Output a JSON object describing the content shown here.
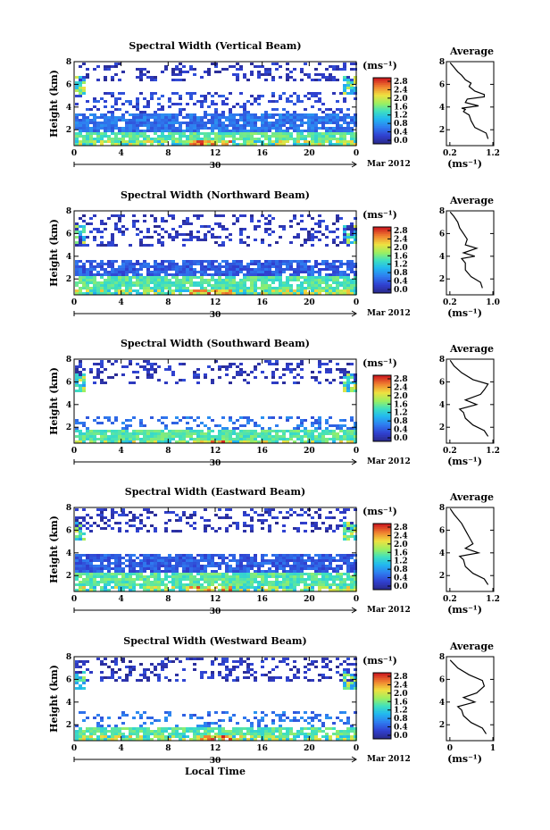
{
  "chart_data": [
    {
      "type": "heatmap",
      "title": "Spectral Width (Vertical Beam)",
      "ylabel": "Height (km)",
      "x_ticks": [
        "0",
        "4",
        "8",
        "12",
        "16",
        "20",
        "0"
      ],
      "y_ticks": [
        "2",
        "4",
        "6",
        "8"
      ],
      "date_day": "30",
      "date_month": "Mar 2012",
      "colorbar": {
        "unit": "(ms⁻¹)",
        "ticks": [
          "0.0",
          "0.4",
          "0.8",
          "1.2",
          "1.6",
          "2.0",
          "2.4",
          "2.8"
        ]
      },
      "average": {
        "title": "Average",
        "xlabel": "(ms⁻¹)",
        "x_ticks": [
          "0.2",
          "1.2"
        ],
        "y_ticks": [
          "2",
          "4",
          "6",
          "8"
        ],
        "profile": [
          [
            1.1,
            1.2
          ],
          [
            1.05,
            1.7
          ],
          [
            0.75,
            2.2
          ],
          [
            0.65,
            2.8
          ],
          [
            0.6,
            3.3
          ],
          [
            0.45,
            3.6
          ],
          [
            0.5,
            3.8
          ],
          [
            0.4,
            3.9
          ],
          [
            0.85,
            4.1
          ],
          [
            0.5,
            4.4
          ],
          [
            0.55,
            4.7
          ],
          [
            1.0,
            4.9
          ],
          [
            1.0,
            5.1
          ],
          [
            0.75,
            5.4
          ],
          [
            0.6,
            5.8
          ],
          [
            0.65,
            6.1
          ],
          [
            0.5,
            6.4
          ],
          [
            0.4,
            6.8
          ],
          [
            0.3,
            7.1
          ],
          [
            0.2,
            7.5
          ],
          [
            0.1,
            7.9
          ]
        ]
      },
      "bands": [
        {
          "h0": 0.6,
          "h1": 1.2,
          "v": 1.0
        },
        {
          "h0": 1.2,
          "h1": 2.0,
          "v": 0.5
        },
        {
          "h0": 2.0,
          "h1": 3.6,
          "v": 0.2
        },
        {
          "h0": 3.6,
          "h1": 5.4,
          "v": 0.1,
          "sparse": true
        },
        {
          "h0": 6.5,
          "h1": 8.0,
          "v": 0.05,
          "sparse": true
        }
      ]
    },
    {
      "type": "heatmap",
      "title": "Spectral Width (Northward Beam)",
      "ylabel": "Height (km)",
      "x_ticks": [
        "0",
        "4",
        "8",
        "12",
        "16",
        "20",
        "0"
      ],
      "y_ticks": [
        "2",
        "4",
        "6",
        "8"
      ],
      "date_day": "30",
      "date_month": "Mar 2012",
      "colorbar": {
        "unit": "(ms⁻¹)",
        "ticks": [
          "0.0",
          "0.4",
          "0.8",
          "1.2",
          "1.6",
          "2.0",
          "2.4",
          "2.8"
        ]
      },
      "average": {
        "title": "Average",
        "xlabel": "(ms⁻¹)",
        "x_ticks": [
          "0.2",
          "1.0"
        ],
        "y_ticks": [
          "2",
          "4",
          "6",
          "8"
        ],
        "profile": [
          [
            0.95,
            1.2
          ],
          [
            0.9,
            1.7
          ],
          [
            0.65,
            2.2
          ],
          [
            0.5,
            2.8
          ],
          [
            0.5,
            3.4
          ],
          [
            0.4,
            3.8
          ],
          [
            0.75,
            4.0
          ],
          [
            0.45,
            4.3
          ],
          [
            0.8,
            4.7
          ],
          [
            0.5,
            5.0
          ],
          [
            0.55,
            5.5
          ],
          [
            0.45,
            6.0
          ],
          [
            0.35,
            6.5
          ],
          [
            0.3,
            7.0
          ],
          [
            0.2,
            7.5
          ],
          [
            0.1,
            7.9
          ]
        ]
      },
      "bands": [
        {
          "h0": 0.6,
          "h1": 1.2,
          "v": 1.0
        },
        {
          "h0": 1.2,
          "h1": 2.4,
          "v": 0.5
        },
        {
          "h0": 2.4,
          "h1": 3.8,
          "v": 0.15
        },
        {
          "h0": 5.0,
          "h1": 7.8,
          "v": 0.05,
          "sparse": true
        }
      ]
    },
    {
      "type": "heatmap",
      "title": "Spectral Width (Southward Beam)",
      "ylabel": "Height (km)",
      "x_ticks": [
        "0",
        "4",
        "8",
        "12",
        "16",
        "20",
        "0"
      ],
      "y_ticks": [
        "2",
        "4",
        "6",
        "8"
      ],
      "date_day": "30",
      "date_month": "Mar 2012",
      "colorbar": {
        "unit": "(ms⁻¹)",
        "ticks": [
          "0.0",
          "0.4",
          "0.8",
          "1.2",
          "1.6",
          "2.0",
          "2.4",
          "2.8"
        ]
      },
      "average": {
        "title": "Average",
        "xlabel": "(ms⁻¹)",
        "x_ticks": [
          "0.2",
          "1.2"
        ],
        "y_ticks": [
          "2",
          "4",
          "6",
          "8"
        ],
        "profile": [
          [
            1.1,
            1.2
          ],
          [
            1.0,
            1.7
          ],
          [
            0.7,
            2.2
          ],
          [
            0.5,
            2.8
          ],
          [
            0.45,
            3.3
          ],
          [
            0.35,
            3.6
          ],
          [
            0.8,
            4.0
          ],
          [
            0.5,
            4.4
          ],
          [
            0.9,
            4.9
          ],
          [
            1.0,
            5.3
          ],
          [
            1.1,
            5.8
          ],
          [
            0.7,
            6.2
          ],
          [
            0.4,
            6.8
          ],
          [
            0.2,
            7.4
          ],
          [
            0.1,
            7.9
          ]
        ]
      },
      "bands": [
        {
          "h0": 0.6,
          "h1": 1.0,
          "v": 1.0
        },
        {
          "h0": 1.0,
          "h1": 2.0,
          "v": 0.5
        },
        {
          "h0": 2.0,
          "h1": 3.0,
          "v": 0.2,
          "sparse": true
        },
        {
          "h0": 6.0,
          "h1": 8.0,
          "v": 0.05,
          "sparse": true
        }
      ]
    },
    {
      "type": "heatmap",
      "title": "Spectral Width (Eastward Beam)",
      "ylabel": "Height (km)",
      "x_ticks": [
        "0",
        "4",
        "8",
        "12",
        "16",
        "20",
        "0"
      ],
      "y_ticks": [
        "2",
        "4",
        "6",
        "8"
      ],
      "date_day": "30",
      "date_month": "Mar 2012",
      "colorbar": {
        "unit": "(ms⁻¹)",
        "ticks": [
          "0.0",
          "0.4",
          "0.8",
          "1.2",
          "1.6",
          "2.0",
          "2.4",
          "2.8"
        ]
      },
      "average": {
        "title": "Average",
        "xlabel": "(ms⁻¹)",
        "x_ticks": [
          "0.2",
          "1.2"
        ],
        "y_ticks": [
          "2",
          "4",
          "6",
          "8"
        ],
        "profile": [
          [
            1.1,
            1.2
          ],
          [
            1.0,
            1.7
          ],
          [
            0.7,
            2.2
          ],
          [
            0.5,
            2.8
          ],
          [
            0.45,
            3.4
          ],
          [
            0.35,
            3.7
          ],
          [
            0.85,
            4.0
          ],
          [
            0.5,
            4.4
          ],
          [
            0.7,
            4.8
          ],
          [
            0.6,
            5.4
          ],
          [
            0.5,
            6.0
          ],
          [
            0.4,
            6.6
          ],
          [
            0.2,
            7.4
          ],
          [
            0.1,
            7.9
          ]
        ]
      },
      "bands": [
        {
          "h0": 0.6,
          "h1": 1.2,
          "v": 1.0
        },
        {
          "h0": 1.2,
          "h1": 2.4,
          "v": 0.5
        },
        {
          "h0": 2.4,
          "h1": 4.0,
          "v": 0.15
        },
        {
          "h0": 6.0,
          "h1": 8.0,
          "v": 0.05,
          "sparse": true
        }
      ]
    },
    {
      "type": "heatmap",
      "title": "Spectral Width (Westward Beam)",
      "ylabel": "Height (km)",
      "x_ticks": [
        "0",
        "4",
        "8",
        "12",
        "16",
        "20",
        "0"
      ],
      "y_ticks": [
        "2",
        "4",
        "6",
        "8"
      ],
      "date_day": "30",
      "date_month": "Mar 2012",
      "xlabel": "Local Time",
      "colorbar": {
        "unit": "(ms⁻¹)",
        "ticks": [
          "0.0",
          "0.4",
          "0.8",
          "1.2",
          "1.6",
          "2.0",
          "2.4",
          "2.8"
        ]
      },
      "average": {
        "title": "Average",
        "xlabel": "(ms⁻¹)",
        "x_ticks": [
          "0",
          "1"
        ],
        "y_ticks": [
          "2",
          "4",
          "6",
          "8"
        ],
        "profile": [
          [
            1.05,
            1.2
          ],
          [
            0.95,
            1.7
          ],
          [
            0.65,
            2.2
          ],
          [
            0.45,
            2.8
          ],
          [
            0.4,
            3.3
          ],
          [
            0.3,
            3.6
          ],
          [
            0.75,
            4.0
          ],
          [
            0.45,
            4.4
          ],
          [
            0.8,
            4.8
          ],
          [
            1.0,
            5.4
          ],
          [
            0.95,
            5.9
          ],
          [
            0.6,
            6.4
          ],
          [
            0.3,
            7.0
          ],
          [
            0.1,
            7.7
          ]
        ]
      },
      "bands": [
        {
          "h0": 0.6,
          "h1": 1.2,
          "v": 1.0
        },
        {
          "h0": 1.2,
          "h1": 2.0,
          "v": 0.5
        },
        {
          "h0": 2.0,
          "h1": 3.4,
          "v": 0.2,
          "sparse": true
        },
        {
          "h0": 6.0,
          "h1": 8.0,
          "v": 0.05,
          "sparse": true
        }
      ]
    }
  ]
}
